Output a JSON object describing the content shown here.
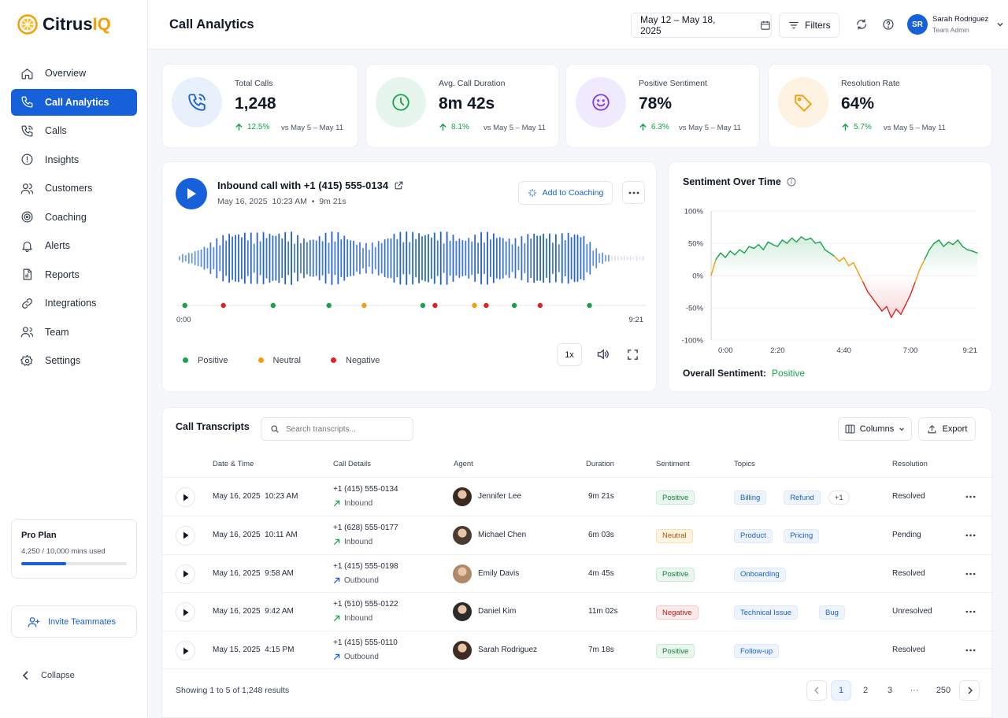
{
  "app": {
    "name_prefix": "Citrus",
    "name_suffix": "IQ"
  },
  "sidebar": {
    "items": [
      {
        "label": "Overview",
        "icon": "home-icon"
      },
      {
        "label": "Call Analytics",
        "icon": "phone-icon",
        "active": true
      },
      {
        "label": "Calls",
        "icon": "phone-call-icon"
      },
      {
        "label": "Insights",
        "icon": "lightbulb-icon"
      },
      {
        "label": "Customers",
        "icon": "users-icon"
      },
      {
        "label": "Coaching",
        "icon": "target-icon"
      },
      {
        "label": "Alerts",
        "icon": "bell-icon"
      },
      {
        "label": "Reports",
        "icon": "report-icon"
      },
      {
        "label": "Integrations",
        "icon": "link-icon"
      },
      {
        "label": "Team",
        "icon": "team-icon"
      },
      {
        "label": "Settings",
        "icon": "gear-icon"
      }
    ],
    "plan": {
      "title": "Pro Plan",
      "usage": "4,250 / 10,000 mins used",
      "usage_fraction": 0.425
    },
    "invite_label": "Invite Teammates",
    "collapse_label": "Collapse"
  },
  "header": {
    "title": "Call Analytics",
    "date_range": "May 12 – May 18, 2025",
    "filters_label": "Filters",
    "user_name": "Sarah Rodriguez",
    "user_role": "Team Admin",
    "user_initials": "SR"
  },
  "kpis": [
    {
      "label": "Total Calls",
      "value": "1,248",
      "change": "12.5%",
      "vs": "vs May 5 – May 11",
      "icon": "phone-call-icon",
      "color": "#1660d9",
      "bg": "#e8f0fc"
    },
    {
      "label": "Avg. Call Duration",
      "value": "8m 42s",
      "change": "8.1%",
      "vs": "vs May 5 – May 11",
      "icon": "clock-icon",
      "color": "#16a34a",
      "bg": "#e7f6ec"
    },
    {
      "label": "Positive Sentiment",
      "value": "78%",
      "change": "6.3%",
      "vs": "vs May 5 – May 11",
      "icon": "smile-icon",
      "color": "#7c3aed",
      "bg": "#efeafd"
    },
    {
      "label": "Resolution Rate",
      "value": "64%",
      "change": "5.7%",
      "vs": "vs May 5 – May 11",
      "icon": "tag-icon",
      "color": "#f59e0b",
      "bg": "#fef3e2"
    }
  ],
  "player": {
    "title": "Inbound call with +1 (415) 555-0134",
    "date": "May 16, 2025",
    "time": "10:23 AM",
    "duration": "9m 21s",
    "add_coaching_label": "Add to Coaching",
    "start_time": "0:00",
    "end_time": "9:21",
    "speed": "1x",
    "legend": [
      {
        "label": "Positive",
        "color": "#16a34a"
      },
      {
        "label": "Neutral",
        "color": "#f59e0b"
      },
      {
        "label": "Negative",
        "color": "#dc2626"
      }
    ],
    "markers": [
      "positive",
      "negative",
      "positive",
      "positive",
      "neutral",
      "positive",
      "negative",
      "neutral",
      "negative",
      "positive",
      "negative",
      "positive"
    ]
  },
  "sentiment": {
    "title": "Sentiment Over Time",
    "overall_label": "Overall Sentiment:",
    "overall_value": "Positive"
  },
  "chart_data": {
    "type": "line",
    "title": "Sentiment Over Time",
    "x_ticks": [
      "0:00",
      "2:20",
      "4:40",
      "7:00",
      "9:21"
    ],
    "y_ticks": [
      "100%",
      "50%",
      "0%",
      "-50%",
      "-100%"
    ],
    "ylim": [
      -100,
      100
    ],
    "xlim_seconds": [
      0,
      561
    ],
    "x_seconds": [
      0,
      10,
      20,
      30,
      40,
      50,
      60,
      70,
      80,
      90,
      100,
      110,
      120,
      130,
      140,
      150,
      160,
      170,
      180,
      190,
      200,
      210,
      220,
      230,
      240,
      250,
      260,
      270,
      280,
      290,
      300,
      310,
      320,
      330,
      340,
      350,
      360,
      370,
      380,
      390,
      400,
      410,
      420,
      430,
      440,
      450,
      460,
      470,
      480,
      490,
      500,
      510,
      520,
      530,
      540,
      550,
      561
    ],
    "values": [
      0,
      25,
      35,
      28,
      38,
      32,
      40,
      35,
      45,
      42,
      48,
      40,
      52,
      48,
      45,
      55,
      50,
      58,
      52,
      60,
      55,
      58,
      50,
      52,
      40,
      35,
      30,
      22,
      28,
      15,
      20,
      5,
      -10,
      -25,
      -35,
      -45,
      -55,
      -48,
      -65,
      -52,
      -60,
      -45,
      -30,
      -10,
      10,
      25,
      40,
      50,
      55,
      45,
      52,
      48,
      55,
      45,
      40,
      38,
      35
    ],
    "grid": true,
    "legend": "none"
  },
  "table": {
    "title": "Call Transcripts",
    "search_placeholder": "Search transcripts...",
    "columns_label": "Columns",
    "export_label": "Export",
    "headers": [
      "Date & Time",
      "Call Details",
      "Agent",
      "Duration",
      "Sentiment",
      "Topics",
      "Resolution"
    ],
    "rows": [
      {
        "date": "May 16, 2025",
        "time": "10:23 AM",
        "phone": "+1 (415) 555-0134",
        "direction": "Inbound",
        "agent": "Jennifer Lee",
        "duration": "9m 21s",
        "sentiment": "Positive",
        "topics": [
          "Billing",
          "Refund"
        ],
        "extra_topics": "+1",
        "resolution": "Resolved",
        "avatar_color": "#3b2a22"
      },
      {
        "date": "May 16, 2025",
        "time": "10:11 AM",
        "phone": "+1 (628) 555-0177",
        "direction": "Inbound",
        "agent": "Michael Chen",
        "duration": "6m 03s",
        "sentiment": "Neutral",
        "topics": [
          "Product",
          "Pricing"
        ],
        "extra_topics": "",
        "resolution": "Pending",
        "avatar_color": "#4a3b30"
      },
      {
        "date": "May 16, 2025",
        "time": "9:58 AM",
        "phone": "+1 (415) 555-0198",
        "direction": "Outbound",
        "agent": "Emily Davis",
        "duration": "4m 45s",
        "sentiment": "Positive",
        "topics": [
          "Onboarding"
        ],
        "extra_topics": "",
        "resolution": "Resolved",
        "avatar_color": "#b08968"
      },
      {
        "date": "May 16, 2025",
        "time": "9:42 AM",
        "phone": "+1 (510) 555-0122",
        "direction": "Inbound",
        "agent": "Daniel Kim",
        "duration": "11m 02s",
        "sentiment": "Negative",
        "topics": [
          "Technical Issue",
          "Bug"
        ],
        "extra_topics": "",
        "resolution": "Unresolved",
        "avatar_color": "#2b2b2b"
      },
      {
        "date": "May 15, 2025",
        "time": "4:15 PM",
        "phone": "+1 (415) 555-0110",
        "direction": "Outbound",
        "agent": "Sarah Rodriguez",
        "duration": "7m 18s",
        "sentiment": "Positive",
        "topics": [
          "Follow-up"
        ],
        "extra_topics": "",
        "resolution": "Resolved",
        "avatar_color": "#3d2b24"
      }
    ],
    "footer": "Showing 1 to 5 of 1,248 results",
    "pages": [
      "1",
      "2",
      "3",
      "···",
      "250"
    ]
  },
  "colors": {
    "accent": "#1660d9",
    "positive": "#16a34a",
    "neutral": "#f59e0b",
    "negative": "#dc2626"
  }
}
